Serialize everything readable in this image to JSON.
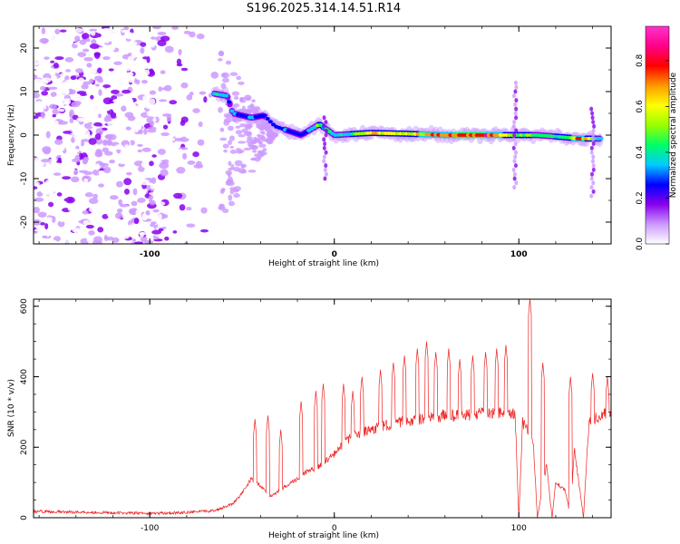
{
  "title": "S196.2025.314.14.51.R14",
  "chart_data": [
    {
      "type": "heatmap",
      "name": "spectrogram",
      "xlabel": "Height of straight line (km)",
      "ylabel": "Frequency (Hz)",
      "xlim": [
        -163,
        150
      ],
      "ylim": [
        -25,
        25
      ],
      "xticks": [
        -100,
        0,
        100
      ],
      "yticks": [
        -20,
        -10,
        0,
        10,
        20
      ],
      "colorbar": {
        "label": "Normalized spectral amplitude",
        "range": [
          0,
          0.95
        ],
        "ticks": [
          0.0,
          0.2,
          0.4,
          0.6,
          0.8
        ],
        "tick_labels": [
          "0.0",
          "0.2",
          "0.4",
          "0.6",
          "0.8"
        ],
        "colors": [
          "#ffffff",
          "#cc99ff",
          "#8800ee",
          "#0000ff",
          "#00ccff",
          "#00ff66",
          "#99ff00",
          "#ffff00",
          "#ff9900",
          "#ff0000",
          "#ff0088",
          "#ff33cc"
        ]
      },
      "noise_region_x": [
        -163,
        -62
      ],
      "ridge": [
        {
          "x": -65,
          "f": 9.5,
          "a": 0.45
        },
        {
          "x": -58,
          "f": 9.0,
          "a": 0.35
        },
        {
          "x": -55,
          "f": 5.0,
          "a": 0.3
        },
        {
          "x": -45,
          "f": 4.0,
          "a": 0.35
        },
        {
          "x": -38,
          "f": 4.5,
          "a": 0.3
        },
        {
          "x": -32,
          "f": 2.0,
          "a": 0.25
        },
        {
          "x": -25,
          "f": 1.0,
          "a": 0.3
        },
        {
          "x": -18,
          "f": 0.0,
          "a": 0.3
        },
        {
          "x": -12,
          "f": 1.5,
          "a": 0.35
        },
        {
          "x": -8,
          "f": 2.5,
          "a": 0.55
        },
        {
          "x": 0,
          "f": 0.0,
          "a": 0.35
        },
        {
          "x": 20,
          "f": 0.5,
          "a": 0.65
        },
        {
          "x": 40,
          "f": 0.3,
          "a": 0.6
        },
        {
          "x": 60,
          "f": 0.0,
          "a": 0.85
        },
        {
          "x": 80,
          "f": 0.0,
          "a": 0.9
        },
        {
          "x": 95,
          "f": 0.0,
          "a": 0.6
        },
        {
          "x": 110,
          "f": 0.0,
          "a": 0.45
        },
        {
          "x": 125,
          "f": -0.5,
          "a": 0.5
        },
        {
          "x": 132,
          "f": -0.8,
          "a": 0.8
        },
        {
          "x": 145,
          "f": -0.8,
          "a": 0.4
        }
      ]
    },
    {
      "type": "line",
      "name": "snr",
      "xlabel": "Height of straight line (km)",
      "ylabel": "SNR (10 * v/v)",
      "xlim": [
        -163,
        150
      ],
      "ylim": [
        0,
        620
      ],
      "xticks": [
        -100,
        0,
        100
      ],
      "yticks": [
        0,
        200,
        400,
        600
      ],
      "series": [
        {
          "name": "SNR",
          "color": "#ee2222",
          "x": [
            -163,
            -130,
            -100,
            -80,
            -65,
            -55,
            -50,
            -45,
            -40,
            -35,
            -30,
            -25,
            -20,
            -15,
            -10,
            -5,
            0,
            5,
            10,
            20,
            30,
            40,
            50,
            60,
            70,
            80,
            90,
            95,
            98,
            100,
            102,
            105,
            108,
            110,
            115,
            118,
            120,
            125,
            128,
            130,
            135,
            138,
            140,
            145,
            150
          ],
          "values": [
            18,
            15,
            12,
            15,
            20,
            40,
            70,
            110,
            90,
            60,
            75,
            95,
            110,
            130,
            140,
            160,
            180,
            210,
            230,
            250,
            265,
            275,
            280,
            290,
            290,
            295,
            295,
            300,
            290,
            0,
            270,
            250,
            200,
            0,
            150,
            0,
            100,
            80,
            0,
            200,
            0,
            270,
            280,
            290,
            300
          ]
        }
      ],
      "spikes": [
        {
          "x": -43,
          "v": 280
        },
        {
          "x": -36,
          "v": 290
        },
        {
          "x": -29,
          "v": 250
        },
        {
          "x": -18,
          "v": 330
        },
        {
          "x": -10,
          "v": 360
        },
        {
          "x": -6,
          "v": 380
        },
        {
          "x": 5,
          "v": 380
        },
        {
          "x": 10,
          "v": 360
        },
        {
          "x": 15,
          "v": 400
        },
        {
          "x": 25,
          "v": 420
        },
        {
          "x": 32,
          "v": 440
        },
        {
          "x": 38,
          "v": 460
        },
        {
          "x": 45,
          "v": 480
        },
        {
          "x": 50,
          "v": 500
        },
        {
          "x": 55,
          "v": 470
        },
        {
          "x": 62,
          "v": 480
        },
        {
          "x": 68,
          "v": 450
        },
        {
          "x": 75,
          "v": 460
        },
        {
          "x": 82,
          "v": 470
        },
        {
          "x": 88,
          "v": 480
        },
        {
          "x": 93,
          "v": 490
        },
        {
          "x": 106,
          "v": 620
        },
        {
          "x": 113,
          "v": 440
        },
        {
          "x": 128,
          "v": 400
        },
        {
          "x": 140,
          "v": 410
        },
        {
          "x": 148,
          "v": 400
        }
      ]
    }
  ]
}
